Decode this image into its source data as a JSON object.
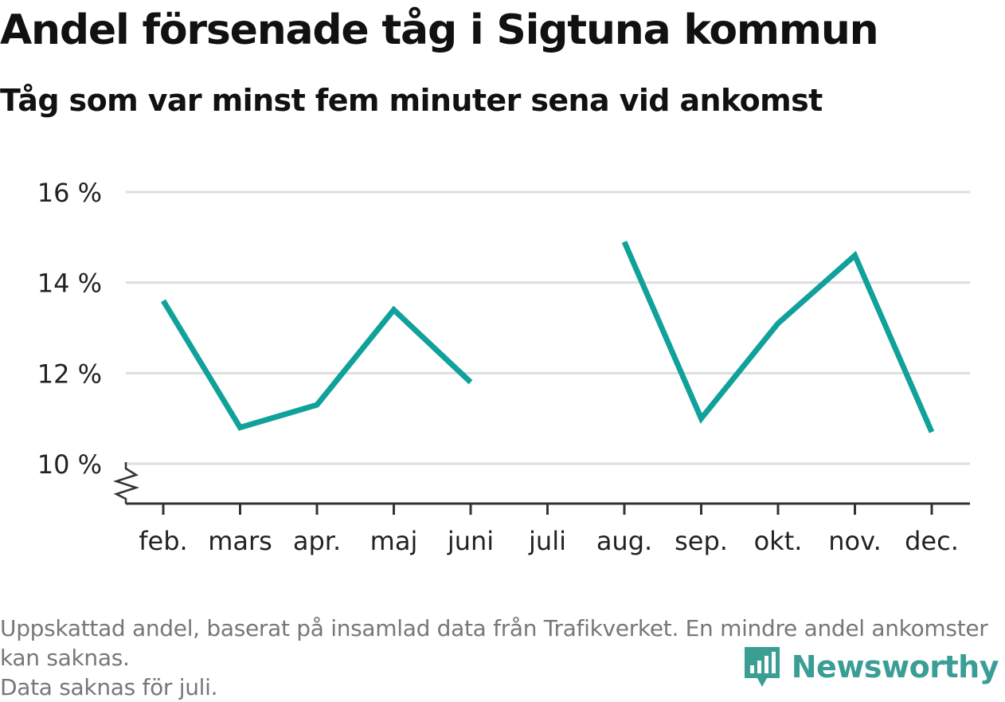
{
  "header": {
    "title": "Andel försenade tåg i Sigtuna kommun",
    "subtitle": "Tåg som var minst fem minuter sena vid ankomst"
  },
  "footer": {
    "note_line1": "Uppskattad andel, baserat på insamlad data från Trafikverket. En mindre andel ankomster kan saknas.",
    "note_line2": "Data saknas för juli.",
    "brand": "Newsworthy",
    "brand_icon": "newsworthy-logo-icon"
  },
  "colors": {
    "line": "#0fa19a",
    "grid": "#dddddd",
    "axis": "#333333",
    "footer_text": "#777777",
    "brand": "#3a9e95"
  },
  "chart_data": {
    "type": "line",
    "title": "Andel försenade tåg i Sigtuna kommun",
    "subtitle": "Tåg som var minst fem minuter sena vid ankomst",
    "categories": [
      "feb.",
      "mars",
      "apr.",
      "maj",
      "juni",
      "juli",
      "aug.",
      "sep.",
      "okt.",
      "nov.",
      "dec."
    ],
    "series": [
      {
        "values": [
          13.6,
          10.8,
          11.3,
          13.4,
          11.8,
          null,
          14.9,
          11.0,
          13.1,
          14.6,
          10.7
        ]
      }
    ],
    "y_ticks": [
      10,
      12,
      14,
      16
    ],
    "y_tick_labels": [
      "10 %",
      "12 %",
      "14 %",
      "16 %"
    ],
    "ylim": [
      10,
      16
    ],
    "y_axis_break": true,
    "grid": true,
    "legend": "none"
  }
}
